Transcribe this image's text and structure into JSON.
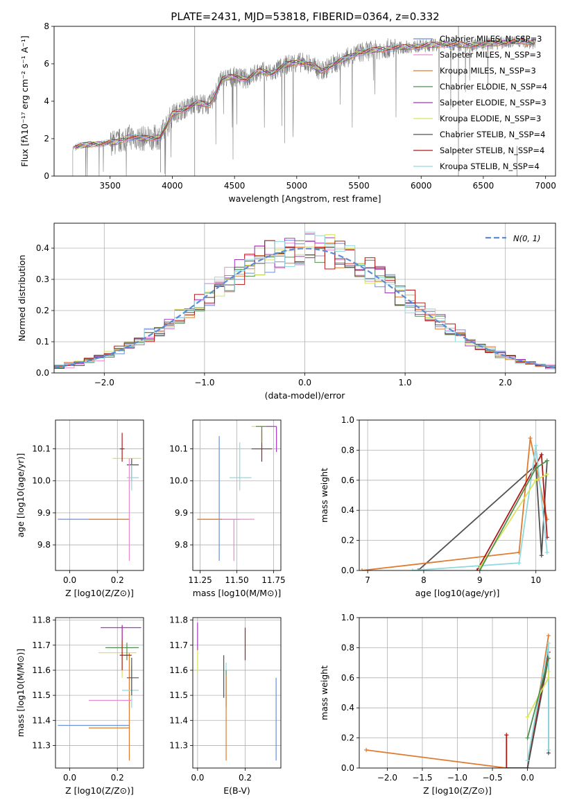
{
  "figure_title": "PLATE=2431, MJD=53818, FIBERID=0364, z=0.332",
  "colors": {
    "Chabrier MILES": "#6a8fd8",
    "Salpeter MILES": "#e98bd0",
    "Kroupa MILES": "#e07a2e",
    "Chabrier ELODIE": "#4f8f4f",
    "Salpeter ELODIE": "#a633c4",
    "Kroupa ELODIE": "#d8e45a",
    "Chabrier STELIB": "#505050",
    "Salpeter STELIB": "#b01818",
    "Kroupa STELIB": "#8fd8e0",
    "normal": "#5b8bd6",
    "data": "#808080"
  },
  "chart_data": [
    {
      "id": "spectrum",
      "type": "line",
      "xlabel": "wavelength [Angstrom, rest frame]",
      "ylabel": "Flux [fλ10⁻¹⁷ erg cm⁻² s⁻¹ A⁻¹]",
      "xlim": [
        3050,
        7080
      ],
      "ylim": [
        0,
        8
      ],
      "xticks": [
        3500,
        4000,
        4500,
        5000,
        5500,
        6000,
        6500,
        7000
      ],
      "yticks": [
        0,
        2,
        4,
        6,
        8
      ],
      "legend_position": "upper right",
      "continuum_x": [
        3200,
        3250,
        3350,
        3450,
        3550,
        3650,
        3750,
        3850,
        3900,
        3950,
        4000,
        4100,
        4200,
        4300,
        4400,
        4500,
        4600,
        4700,
        4800,
        4900,
        5000,
        5100,
        5200,
        5300,
        5400,
        5500,
        5600,
        5700,
        5800,
        5900,
        6000,
        6100,
        6200,
        6300,
        6400,
        6500,
        6600,
        6700,
        6800,
        6920
      ],
      "continuum_y": [
        1.5,
        1.6,
        1.7,
        1.75,
        1.8,
        2.1,
        2.0,
        2.05,
        2.1,
        2.6,
        3.3,
        3.6,
        3.9,
        3.8,
        5.2,
        5.3,
        5.2,
        5.6,
        5.5,
        5.9,
        6.1,
        6.0,
        5.6,
        6.0,
        6.3,
        6.6,
        6.7,
        6.8,
        6.85,
        6.9,
        6.95,
        7.0,
        7.05,
        7.0,
        7.0,
        7.05,
        7.1,
        7.15,
        7.2,
        7.1
      ],
      "series": [
        {
          "name": "Chabrier MILES, N_SSP=3"
        },
        {
          "name": "Salpeter MILES, N_SSP=3"
        },
        {
          "name": "Kroupa MILES, N_SSP=3"
        },
        {
          "name": "Chabrier ELODIE, N_SSP=4"
        },
        {
          "name": "Salpeter ELODIE, N_SSP=3"
        },
        {
          "name": "Kroupa ELODIE, N_SSP=3"
        },
        {
          "name": "Chabrier STELIB, N_SSP=4"
        },
        {
          "name": "Salpeter STELIB, N_SSP=4"
        },
        {
          "name": "Kroupa STELIB, N_SSP=4"
        }
      ]
    },
    {
      "id": "residuals",
      "type": "bar",
      "xlabel": "(data-model)/error",
      "ylabel": "Normed distribution",
      "xlim": [
        -2.5,
        2.5
      ],
      "ylim": [
        0,
        0.48
      ],
      "xticks": [
        -2,
        -1,
        0,
        1,
        2
      ],
      "yticks": [
        0.0,
        0.1,
        0.2,
        0.3,
        0.4
      ],
      "bin_width": 0.1,
      "legend_label": "N(0, 1)",
      "legend_position": "upper right",
      "grid": true
    },
    {
      "id": "age_vs_Z",
      "type": "scatter",
      "xlabel": "Z [log10(Z/Z⊙)]",
      "ylabel": "age [log10(age/yr)]",
      "xlim": [
        -0.06,
        0.31
      ],
      "ylim": [
        9.72,
        10.19
      ],
      "xticks": [
        0.0,
        0.2
      ],
      "yticks": [
        9.8,
        9.9,
        10.0,
        10.1
      ],
      "grid": true,
      "points": [
        {
          "c": "Chabrier MILES",
          "x": 0.25,
          "xe": [
            -0.05,
            0.25
          ],
          "y": 9.88,
          "ye": [
            9.88,
            9.88
          ]
        },
        {
          "c": "Kroupa MILES",
          "x": 0.25,
          "xe": [
            0.08,
            0.25
          ],
          "y": 9.88,
          "ye": [
            9.88,
            9.88
          ]
        },
        {
          "c": "Kroupa ELODIE",
          "x": 0.22,
          "xe": [
            0.18,
            0.3
          ],
          "y": 10.07,
          "ye": [
            10.07,
            10.07
          ]
        },
        {
          "c": "Salpeter STELIB",
          "x": 0.22,
          "xe": [
            0.21,
            0.23
          ],
          "y": 10.1,
          "ye": [
            10.06,
            10.15
          ]
        },
        {
          "c": "Chabrier STELIB",
          "x": 0.26,
          "xe": [
            0.24,
            0.29
          ],
          "y": 10.05,
          "ye": [
            10.0,
            10.07
          ]
        },
        {
          "c": "Kroupa STELIB",
          "x": 0.26,
          "xe": [
            0.24,
            0.29
          ],
          "y": 10.01,
          "ye": [
            9.97,
            10.05
          ]
        },
        {
          "c": "Salpeter MILES",
          "x": 0.25,
          "xe": [
            0.25,
            0.25
          ],
          "y": 10.07,
          "ye": [
            9.75,
            10.07
          ]
        }
      ]
    },
    {
      "id": "age_vs_mass",
      "type": "scatter",
      "xlabel": "mass [log10(M/M⊙)]",
      "ylabel": "",
      "xlim": [
        11.2,
        11.8
      ],
      "ylim": [
        9.72,
        10.19
      ],
      "xticks": [
        11.25,
        11.5,
        11.75
      ],
      "yticks": [
        9.8,
        9.9,
        10.0,
        10.1
      ],
      "grid": true,
      "points": [
        {
          "c": "Chabrier MILES",
          "x": 11.38,
          "xe": [
            11.23,
            11.52
          ],
          "y": 9.88,
          "ye": [
            9.75,
            10.14
          ]
        },
        {
          "c": "Kroupa MILES",
          "x": 11.38,
          "xe": [
            11.23,
            11.52
          ],
          "y": 9.88,
          "ye": [
            9.88,
            9.88
          ]
        },
        {
          "c": "Salpeter MILES",
          "x": 11.48,
          "xe": [
            11.4,
            11.62
          ],
          "y": 9.88,
          "ye": [
            9.75,
            9.88
          ]
        },
        {
          "c": "Kroupa STELIB",
          "x": 11.52,
          "xe": [
            11.45,
            11.6
          ],
          "y": 10.01,
          "ye": [
            9.97,
            10.12
          ]
        },
        {
          "c": "Salpeter STELIB",
          "x": 11.67,
          "xe": [
            11.6,
            11.74
          ],
          "y": 10.1,
          "ye": [
            10.06,
            10.16
          ]
        },
        {
          "c": "Kroupa ELODIE",
          "x": 11.67,
          "xe": [
            11.6,
            11.74
          ],
          "y": 10.17,
          "ye": [
            10.12,
            10.17
          ]
        },
        {
          "c": "Salpeter ELODIE",
          "x": 11.77,
          "xe": [
            11.7,
            11.77
          ],
          "y": 10.17,
          "ye": [
            10.09,
            10.17
          ]
        },
        {
          "c": "Chabrier ELODIE",
          "x": 11.67,
          "xe": [
            11.63,
            11.7
          ],
          "y": 10.17,
          "ye": [
            10.12,
            10.17
          ]
        }
      ]
    },
    {
      "id": "mass_weight_vs_age",
      "type": "line",
      "xlabel": "age [log10(age/yr)]",
      "ylabel": "mass weight",
      "xlim": [
        6.85,
        10.35
      ],
      "ylim": [
        0,
        1
      ],
      "xticks": [
        7,
        8,
        9,
        10
      ],
      "yticks": [
        0.0,
        0.2,
        0.4,
        0.6,
        0.8,
        1.0
      ],
      "grid": true,
      "series": [
        {
          "c": "Chabrier STELIB",
          "x": [
            7.9,
            10.0,
            10.1,
            10.2
          ],
          "y": [
            0.0,
            0.7,
            0.1,
            0.73
          ]
        },
        {
          "c": "Kroupa MILES",
          "x": [
            6.9,
            9.7,
            9.9,
            10.2
          ],
          "y": [
            0.0,
            0.12,
            0.88,
            0.34
          ]
        },
        {
          "c": "Salpeter STELIB",
          "x": [
            8.95,
            10.1,
            10.2
          ],
          "y": [
            0.0,
            0.77,
            0.22
          ]
        },
        {
          "c": "Kroupa STELIB",
          "x": [
            7.8,
            9.7,
            10.0,
            10.2
          ],
          "y": [
            0.0,
            0.05,
            0.83,
            0.12
          ]
        },
        {
          "c": "Kroupa ELODIE",
          "x": [
            9.0,
            10.0,
            10.2
          ],
          "y": [
            0.02,
            0.6,
            0.64
          ]
        },
        {
          "c": "Chabrier ELODIE",
          "x": [
            9.0,
            10.0,
            10.2
          ],
          "y": [
            0.0,
            0.68,
            0.73
          ]
        }
      ]
    },
    {
      "id": "mass_vs_Z",
      "type": "scatter",
      "xlabel": "Z [log10(Z/Z⊙)]",
      "ylabel": "mass [log10(M/M⊙)]",
      "xlim": [
        -0.06,
        0.31
      ],
      "ylim": [
        11.21,
        11.81
      ],
      "xticks": [
        0.0,
        0.2
      ],
      "yticks": [
        11.3,
        11.4,
        11.5,
        11.6,
        11.7,
        11.8
      ],
      "grid": true,
      "points": [
        {
          "c": "Chabrier MILES",
          "x": 0.25,
          "xe": [
            -0.05,
            0.25
          ],
          "y": 11.38,
          "ye": [
            11.38,
            11.38
          ]
        },
        {
          "c": "Kroupa MILES",
          "x": 0.25,
          "xe": [
            0.08,
            0.25
          ],
          "y": 11.37,
          "ye": [
            11.24,
            11.67
          ]
        },
        {
          "c": "Salpeter MILES",
          "x": 0.18,
          "xe": [
            0.08,
            0.26
          ],
          "y": 11.48,
          "ye": [
            11.48,
            11.48
          ]
        },
        {
          "c": "Kroupa STELIB",
          "x": 0.26,
          "xe": [
            0.22,
            0.29
          ],
          "y": 11.52,
          "ye": [
            11.45,
            11.62
          ]
        },
        {
          "c": "Chabrier STELIB",
          "x": 0.26,
          "xe": [
            0.24,
            0.29
          ],
          "y": 11.57,
          "ye": [
            11.5,
            11.65
          ]
        },
        {
          "c": "Kroupa ELODIE",
          "x": 0.22,
          "xe": [
            0.12,
            0.28
          ],
          "y": 11.67,
          "ye": [
            11.57,
            11.75
          ]
        },
        {
          "c": "Chabrier ELODIE",
          "x": 0.24,
          "xe": [
            0.15,
            0.29
          ],
          "y": 11.69,
          "ye": [
            11.64,
            11.71
          ]
        },
        {
          "c": "Salpeter STELIB",
          "x": 0.22,
          "xe": [
            0.21,
            0.26
          ],
          "y": 11.66,
          "ye": [
            11.6,
            11.78
          ]
        },
        {
          "c": "Salpeter ELODIE",
          "x": 0.22,
          "xe": [
            0.13,
            0.3
          ],
          "y": 11.77,
          "ye": [
            11.72,
            11.78
          ]
        }
      ]
    },
    {
      "id": "mass_vs_ebv",
      "type": "scatter",
      "xlabel": "E(B-V)",
      "ylabel": "",
      "xlim": [
        -0.02,
        0.35
      ],
      "ylim": [
        11.21,
        11.81
      ],
      "xticks": [
        0.0,
        0.2
      ],
      "yticks": [
        11.3,
        11.4,
        11.5,
        11.6,
        11.7,
        11.8
      ],
      "grid": true,
      "points": [
        {
          "c": "Salpeter ELODIE",
          "x": 0.0,
          "xe": [
            0.0,
            0.0
          ],
          "y": 11.73,
          "ye": [
            11.68,
            11.79
          ]
        },
        {
          "c": "Kroupa ELODIE",
          "x": 0.0,
          "xe": [
            0.0,
            0.0
          ],
          "y": 11.64,
          "ye": [
            11.59,
            11.68
          ]
        },
        {
          "c": "Chabrier STELIB",
          "x": 0.11,
          "xe": [
            0.11,
            0.11
          ],
          "y": 11.57,
          "ye": [
            11.49,
            11.66
          ]
        },
        {
          "c": "Kroupa STELIB",
          "x": 0.12,
          "xe": [
            0.12,
            0.12
          ],
          "y": 11.55,
          "ye": [
            11.46,
            11.63
          ]
        },
        {
          "c": "Chabrier ELODIE",
          "x": 0.12,
          "xe": [
            0.12,
            0.12
          ],
          "y": 11.52,
          "ye": [
            11.45,
            11.6
          ]
        },
        {
          "c": "Kroupa MILES",
          "x": 0.12,
          "xe": [
            0.12,
            0.12
          ],
          "y": 11.38,
          "ye": [
            11.24,
            11.58
          ]
        },
        {
          "c": "Salpeter STELIB",
          "x": 0.2,
          "xe": [
            0.2,
            0.2
          ],
          "y": 11.7,
          "ye": [
            11.64,
            11.77
          ]
        },
        {
          "c": "Chabrier MILES",
          "x": 0.33,
          "xe": [
            0.33,
            0.33
          ],
          "y": 11.4,
          "ye": [
            11.24,
            11.57
          ]
        }
      ]
    },
    {
      "id": "mass_weight_vs_Z",
      "type": "line",
      "xlabel": "Z [log10(Z/Z⊙)]",
      "ylabel": "mass weight",
      "xlim": [
        -2.4,
        0.4
      ],
      "ylim": [
        0,
        1
      ],
      "xticks": [
        -2.0,
        -1.5,
        -1.0,
        -0.5,
        0.0
      ],
      "yticks": [
        0.0,
        0.2,
        0.4,
        0.6,
        0.8,
        1.0
      ],
      "grid": true,
      "series": [
        {
          "c": "Kroupa MILES",
          "x": [
            -2.3,
            -0.3,
            0.0,
            0.3
          ],
          "y": [
            0.12,
            0.0,
            0.0,
            0.88
          ]
        },
        {
          "c": "Salpeter STELIB",
          "x": [
            -0.3,
            -0.3,
            0.0,
            0.3
          ],
          "y": [
            0.22,
            0.0,
            0.0,
            0.77
          ]
        },
        {
          "c": "Chabrier STELIB",
          "x": [
            0.0,
            0.3,
            0.3
          ],
          "y": [
            0.0,
            0.73,
            0.1
          ]
        },
        {
          "c": "Kroupa STELIB",
          "x": [
            0.0,
            0.3,
            0.3
          ],
          "y": [
            0.05,
            0.83,
            0.12
          ]
        },
        {
          "c": "Kroupa ELODIE",
          "x": [
            0.0,
            0.3,
            0.3
          ],
          "y": [
            0.34,
            0.6,
            0.64
          ]
        },
        {
          "c": "Chabrier ELODIE",
          "x": [
            0.0,
            0.3
          ],
          "y": [
            0.2,
            0.73
          ]
        }
      ]
    }
  ]
}
